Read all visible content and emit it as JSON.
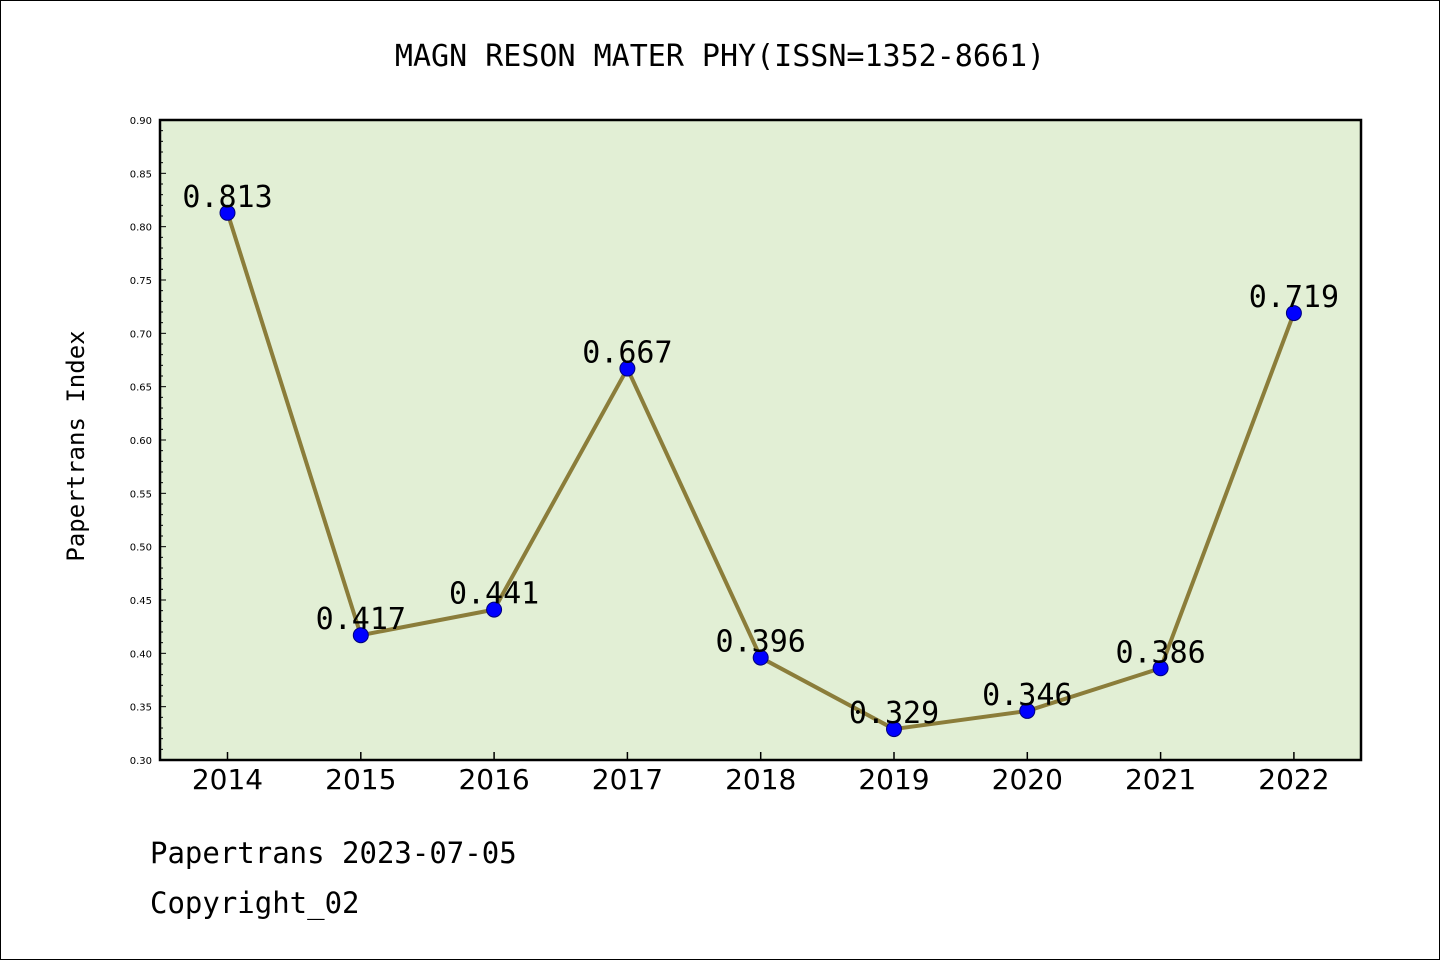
{
  "chart_data": {
    "type": "line",
    "title": "MAGN RESON MATER PHY(ISSN=1352-8661)",
    "ylabel": "Papertrans Index",
    "xlabel": "",
    "categories": [
      "2014",
      "2015",
      "2016",
      "2017",
      "2018",
      "2019",
      "2020",
      "2021",
      "2022"
    ],
    "values": [
      0.813,
      0.417,
      0.441,
      0.667,
      0.396,
      0.329,
      0.346,
      0.386,
      0.719
    ],
    "data_labels": [
      "0.813",
      "0.417",
      "0.441",
      "0.667",
      "0.396",
      "0.329",
      "0.346",
      "0.386",
      "0.719"
    ],
    "ylim": [
      0.3,
      0.9
    ],
    "yticks": [
      "0.30",
      "0.35",
      "0.40",
      "0.45",
      "0.50",
      "0.55",
      "0.60",
      "0.65",
      "0.70",
      "0.75",
      "0.80",
      "0.85",
      "0.90"
    ],
    "grid": false,
    "colors": {
      "plot_background": "#e2efd5",
      "line": "#8b7d3a",
      "marker": "#0000ff"
    }
  },
  "footer": {
    "line1": "Papertrans 2023-07-05",
    "line2": "Copyright_02"
  }
}
